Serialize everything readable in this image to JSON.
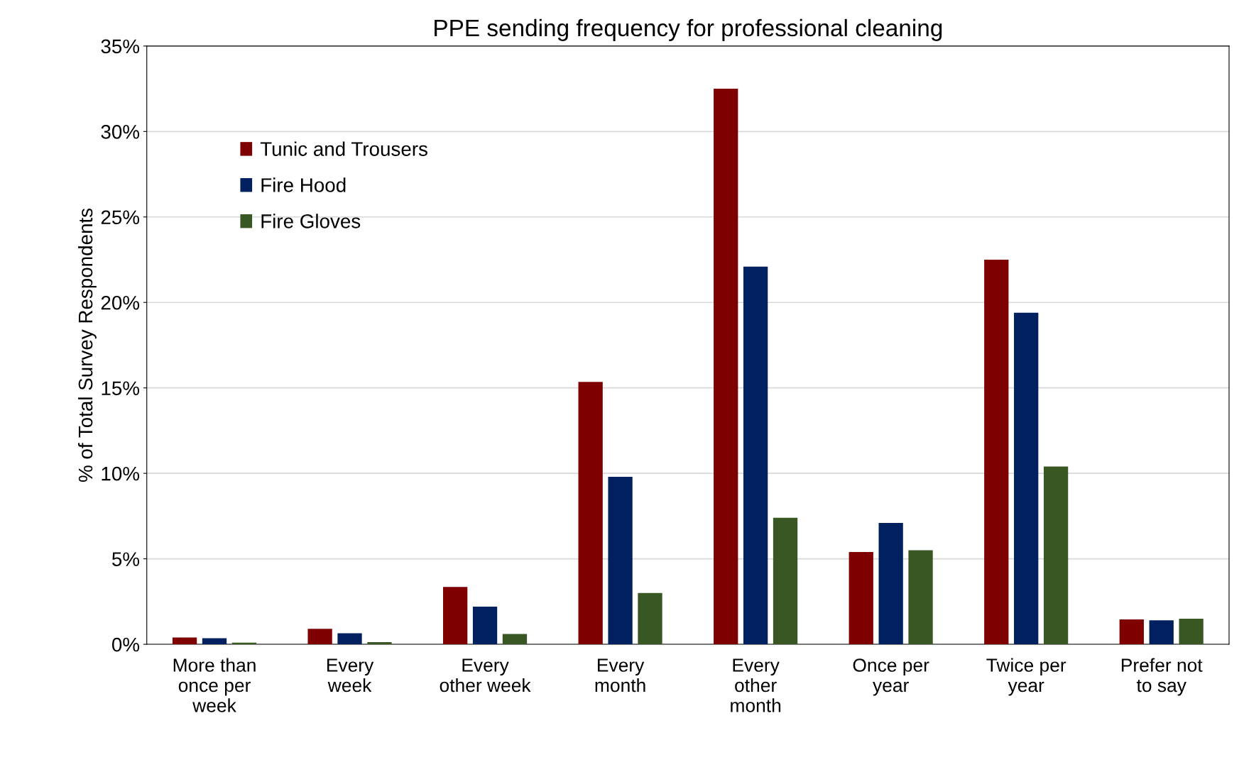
{
  "chart_data": {
    "type": "bar",
    "title": "PPE sending frequency for professional cleaning",
    "ylabel": "% of Total Survey Respondents",
    "categories": [
      "More than\nonce per\nweek",
      "Every\nweek",
      "Every\nother week",
      "Every\nmonth",
      "Every\nother\nmonth",
      "Once per\nyear",
      "Twice per\nyear",
      "Prefer not\nto say"
    ],
    "series": [
      {
        "name": "Tunic and Trousers",
        "color": "#7f0000",
        "values": [
          0.4,
          0.9,
          3.35,
          15.35,
          32.5,
          5.4,
          22.5,
          1.45
        ]
      },
      {
        "name": "Fire Hood",
        "color": "#002060",
        "values": [
          0.35,
          0.65,
          2.2,
          9.8,
          22.1,
          7.1,
          19.4,
          1.4
        ]
      },
      {
        "name": "Fire Gloves",
        "color": "#385723",
        "values": [
          0.1,
          0.13,
          0.6,
          3.0,
          7.4,
          5.5,
          10.4,
          1.5
        ]
      }
    ],
    "ylim": [
      0,
      35
    ],
    "yticks": [
      {
        "value": 0,
        "label": "0%"
      },
      {
        "value": 5,
        "label": "5%"
      },
      {
        "value": 10,
        "label": "10%"
      },
      {
        "value": 15,
        "label": "15%"
      },
      {
        "value": 20,
        "label": "20%"
      },
      {
        "value": 25,
        "label": "25%"
      },
      {
        "value": 30,
        "label": "30%"
      },
      {
        "value": 35,
        "label": "35%"
      }
    ],
    "grid": "y",
    "legend": "top left"
  }
}
